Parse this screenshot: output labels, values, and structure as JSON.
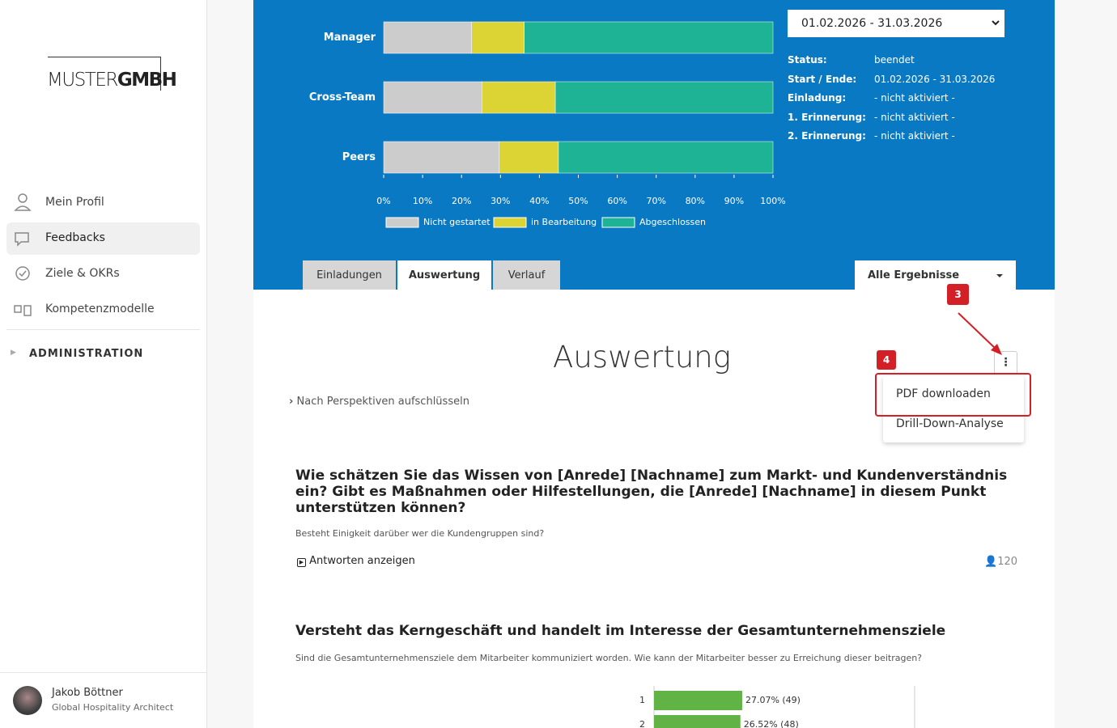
{
  "sidebar": {
    "logo": {
      "light": "MUSTER",
      "bold": "GMBH"
    },
    "nav": [
      "Mein Profil",
      "Feedbacks",
      "Ziele & OKRs",
      "Kompetenzmodelle"
    ],
    "section": "ADMINISTRATION",
    "user": {
      "name": "Jakob Böttner",
      "role": "Global Hospitality Architect"
    }
  },
  "period": "01.02.2026 - 31.03.2026",
  "status": {
    "rows": [
      {
        "label": "Status:",
        "value": "beendet"
      },
      {
        "label": "Start / Ende:",
        "value": "01.02.2026 - 31.03.2026"
      },
      {
        "label": "Einladung:",
        "value": "- nicht aktiviert -"
      },
      {
        "label": "1. Erinnerung:",
        "value": "- nicht aktiviert -"
      },
      {
        "label": "2. Erinnerung:",
        "value": "- nicht aktiviert -"
      }
    ]
  },
  "tabs": [
    "Einladungen",
    "Auswertung",
    "Verlauf"
  ],
  "filter": "Alle Ergebnisse",
  "annotations": [
    "3",
    "4"
  ],
  "heading": "Auswertung",
  "breakdown": "Nach Perspektiven aufschlüsseln",
  "menu": [
    "PDF downloaden",
    "Drill-Down-Analyse"
  ],
  "questions": [
    {
      "title": "Wie schätzen Sie das Wissen von [Anrede] [Nachname] zum Markt- und Kundenverständnis ein? Gibt es Maßnahmen oder Hilfestellungen, die [Anrede] [Nachname] in diesem Punkt unterstützen können?",
      "description": "Besteht Einigkeit darüber wer die Kundengruppen sind?",
      "show_answers": "Antworten anzeigen",
      "count": "120"
    },
    {
      "title": "Versteht das Kerngeschäft und handelt im Interesse der Gesamtunternehmensziele",
      "description": "Sind die Gesamtunternehmensziele dem Mitarbeiter kommuniziert worden. Wie kann der Mitarbeiter besser zu Erreichung dieser beitragen?"
    }
  ],
  "chart_data": [
    {
      "type": "bar",
      "orientation": "horizontal",
      "stacked": true,
      "categories": [
        "Manager",
        "Cross-Team",
        "Peers"
      ],
      "series": [
        {
          "name": "Nicht gestartet",
          "color": "#cccccc",
          "values": [
            22.6,
            25.2,
            29.7
          ]
        },
        {
          "name": "in Bearbeitung",
          "color": "#dcd435",
          "values": [
            13.5,
            18.9,
            15.2
          ]
        },
        {
          "name": "Abgeschlossen",
          "color": "#1eb394",
          "values": [
            63.9,
            55.9,
            55.1
          ]
        }
      ],
      "xlim": [
        0,
        100
      ],
      "xticks": [
        {
          "value": 0,
          "label": "0%"
        },
        {
          "value": 10,
          "label": "10%"
        },
        {
          "value": 20,
          "label": "20%"
        },
        {
          "value": 30,
          "label": "30%"
        },
        {
          "value": 40,
          "label": "40%"
        },
        {
          "value": 50,
          "label": "50%"
        },
        {
          "value": 60,
          "label": "60%"
        },
        {
          "value": 70,
          "label": "70%"
        },
        {
          "value": 80,
          "label": "80%"
        },
        {
          "value": 90,
          "label": "90%"
        },
        {
          "value": 100,
          "label": "100%"
        }
      ],
      "legend": "bottom"
    },
    {
      "type": "bar",
      "orientation": "horizontal",
      "categories": [
        "1",
        "2"
      ],
      "values": [
        27.07,
        26.52
      ],
      "value_labels": [
        "27.07% (49)",
        "26.52% (48)"
      ],
      "color": "#62b346",
      "xlim": [
        0,
        80
      ]
    }
  ]
}
